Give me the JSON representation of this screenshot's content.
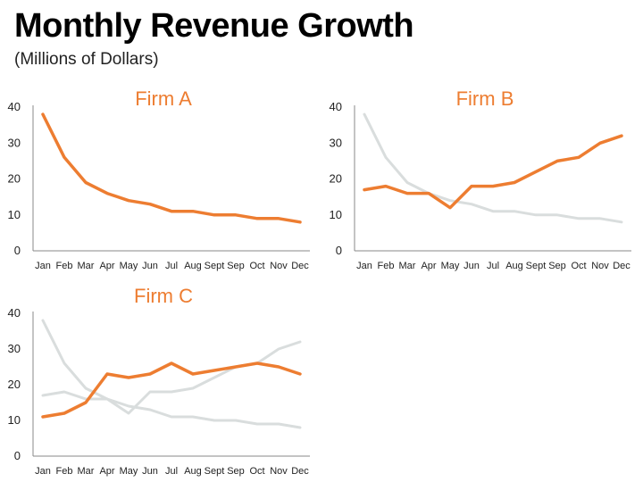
{
  "header": {
    "title": "Monthly Revenue Growth",
    "subtitle": "(Millions of Dollars)"
  },
  "colors": {
    "highlight": "#ed7d31",
    "context": "#d9dddd",
    "axis": "#888888"
  },
  "chart_data": [
    {
      "type": "line",
      "title": "Firm A",
      "categories": [
        "Jan",
        "Feb",
        "Mar",
        "Apr",
        "May",
        "Jun",
        "Jul",
        "Aug",
        "Sept",
        "Sep",
        "Oct",
        "Nov",
        "Dec"
      ],
      "ylim": [
        0,
        40
      ],
      "yticks": [
        0,
        10,
        20,
        30,
        40
      ],
      "grid": false,
      "series": [
        {
          "values": [
            38,
            26,
            19,
            16,
            14,
            13,
            11,
            11,
            10,
            10,
            9,
            9,
            8
          ],
          "highlight": true
        }
      ]
    },
    {
      "type": "line",
      "title": "Firm B",
      "categories": [
        "Jan",
        "Feb",
        "Mar",
        "Apr",
        "May",
        "Jun",
        "Jul",
        "Aug",
        "Sept",
        "Sep",
        "Oct",
        "Nov",
        "Dec"
      ],
      "ylim": [
        0,
        40
      ],
      "yticks": [
        0,
        10,
        20,
        30,
        40
      ],
      "grid": false,
      "series": [
        {
          "values": [
            38,
            26,
            19,
            16,
            14,
            13,
            11,
            11,
            10,
            10,
            9,
            9,
            8
          ],
          "highlight": false
        },
        {
          "values": [
            17,
            18,
            16,
            16,
            12,
            18,
            18,
            19,
            22,
            25,
            26,
            30,
            32
          ],
          "highlight": true
        }
      ]
    },
    {
      "type": "line",
      "title": "Firm C",
      "categories": [
        "Jan",
        "Feb",
        "Mar",
        "Apr",
        "May",
        "Jun",
        "Jul",
        "Aug",
        "Sept",
        "Sep",
        "Oct",
        "Nov",
        "Dec"
      ],
      "ylim": [
        0,
        40
      ],
      "yticks": [
        0,
        10,
        20,
        30,
        40
      ],
      "grid": false,
      "series": [
        {
          "values": [
            38,
            26,
            19,
            16,
            14,
            13,
            11,
            11,
            10,
            10,
            9,
            9,
            8
          ],
          "highlight": false
        },
        {
          "values": [
            17,
            18,
            16,
            16,
            12,
            18,
            18,
            19,
            22,
            25,
            26,
            30,
            32
          ],
          "highlight": false
        },
        {
          "values": [
            11,
            12,
            15,
            23,
            22,
            23,
            26,
            23,
            24,
            25,
            26,
            25,
            23
          ],
          "highlight": true
        }
      ]
    }
  ]
}
